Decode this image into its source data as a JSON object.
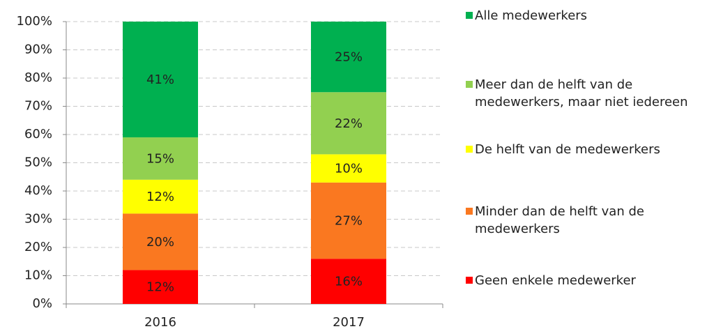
{
  "chart_data": {
    "type": "stacked_bar",
    "categories": [
      "2016",
      "2017"
    ],
    "series": [
      {
        "name": "Geen enkele medewerker",
        "color": "#ff0000",
        "values": [
          12,
          16
        ],
        "value_labels": [
          "12%",
          "16%"
        ]
      },
      {
        "name": "Minder dan de helft van de medewerkers",
        "color": "#fa7820",
        "values": [
          20,
          27
        ],
        "value_labels": [
          "20%",
          "27%"
        ]
      },
      {
        "name": "De helft van de medewerkers",
        "color": "#ffff00",
        "values": [
          12,
          10
        ],
        "value_labels": [
          "12%",
          "10%"
        ]
      },
      {
        "name": "Meer dan de helft van de medewerkers, maar niet iedereen",
        "color": "#92d050",
        "values": [
          15,
          22
        ],
        "value_labels": [
          "15%",
          "22%"
        ]
      },
      {
        "name": "Alle medewerkers",
        "color": "#00b050",
        "values": [
          41,
          25
        ],
        "value_labels": [
          "41%",
          "25%"
        ]
      }
    ],
    "ylim": [
      0,
      100
    ],
    "yticks": [
      {
        "value": 0,
        "label": "0%"
      },
      {
        "value": 10,
        "label": "10%"
      },
      {
        "value": 20,
        "label": "20%"
      },
      {
        "value": 30,
        "label": "30%"
      },
      {
        "value": 40,
        "label": "40%"
      },
      {
        "value": 50,
        "label": "50%"
      },
      {
        "value": 60,
        "label": "60%"
      },
      {
        "value": 70,
        "label": "70%"
      },
      {
        "value": 80,
        "label": "80%"
      },
      {
        "value": 90,
        "label": "90%"
      },
      {
        "value": 100,
        "label": "100%"
      }
    ],
    "grid": true,
    "legend": "right"
  }
}
